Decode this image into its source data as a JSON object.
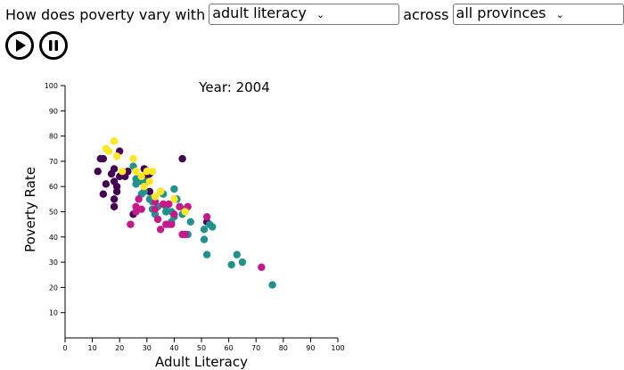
{
  "header": {
    "question_prefix": "How does poverty vary with",
    "measure_selected": "adult literacy",
    "question_middle": "across",
    "region_selected": "all provinces",
    "question_suffix": "?"
  },
  "controls": {
    "play_icon": "play-icon",
    "pause_icon": "pause-icon"
  },
  "colors": {
    "purple": "#440154",
    "teal": "#21918c",
    "magenta": "#c51b8a",
    "yellow": "#fde725"
  },
  "chart_data": {
    "type": "scatter",
    "title": "Year: 2004",
    "xlabel": "Adult Literacy",
    "ylabel": "Poverty Rate",
    "xlim": [
      0,
      100
    ],
    "ylim": [
      0,
      100
    ],
    "xticks": [
      0,
      10,
      20,
      30,
      40,
      50,
      60,
      70,
      80,
      90,
      100
    ],
    "yticks": [
      10,
      20,
      30,
      40,
      50,
      60,
      70,
      80,
      90,
      100
    ],
    "grid": false,
    "series": [
      {
        "color": "#440154",
        "points": [
          [
            12,
            66
          ],
          [
            13,
            71
          ],
          [
            14,
            71
          ],
          [
            14,
            57
          ],
          [
            15,
            61
          ],
          [
            17,
            65
          ],
          [
            18,
            67
          ],
          [
            18,
            62
          ],
          [
            18,
            55
          ],
          [
            18,
            52
          ],
          [
            19,
            60
          ],
          [
            19,
            58
          ],
          [
            20,
            64
          ],
          [
            20,
            74
          ],
          [
            22,
            64
          ],
          [
            23,
            66
          ],
          [
            25,
            49
          ],
          [
            27,
            63
          ],
          [
            29,
            67
          ],
          [
            30,
            64
          ],
          [
            31,
            65
          ],
          [
            31,
            58
          ],
          [
            43,
            71
          ],
          [
            52,
            46
          ]
        ]
      },
      {
        "color": "#21918c",
        "points": [
          [
            25,
            68
          ],
          [
            26,
            63
          ],
          [
            26,
            61
          ],
          [
            28,
            62
          ],
          [
            28,
            57
          ],
          [
            29,
            58
          ],
          [
            30,
            62
          ],
          [
            31,
            55
          ],
          [
            32,
            54
          ],
          [
            32,
            51
          ],
          [
            33,
            49
          ],
          [
            34,
            52
          ],
          [
            35,
            58
          ],
          [
            36,
            57
          ],
          [
            37,
            52
          ],
          [
            37,
            50
          ],
          [
            38,
            45
          ],
          [
            39,
            50
          ],
          [
            39,
            46
          ],
          [
            40,
            59
          ],
          [
            40,
            48
          ],
          [
            41,
            55
          ],
          [
            42,
            52
          ],
          [
            43,
            49
          ],
          [
            44,
            51
          ],
          [
            45,
            41
          ],
          [
            46,
            46
          ],
          [
            51,
            43
          ],
          [
            51,
            39
          ],
          [
            52,
            33
          ],
          [
            53,
            45
          ],
          [
            54,
            44
          ],
          [
            61,
            29
          ],
          [
            63,
            33
          ],
          [
            65,
            30
          ],
          [
            76,
            21
          ]
        ]
      },
      {
        "color": "#c51b8a",
        "points": [
          [
            24,
            45
          ],
          [
            26,
            50
          ],
          [
            26,
            52
          ],
          [
            27,
            55
          ],
          [
            28,
            51
          ],
          [
            33,
            51
          ],
          [
            33,
            54
          ],
          [
            34,
            47
          ],
          [
            35,
            43
          ],
          [
            36,
            53
          ],
          [
            37,
            45
          ],
          [
            38,
            53
          ],
          [
            39,
            45
          ],
          [
            40,
            49
          ],
          [
            42,
            52
          ],
          [
            43,
            41
          ],
          [
            44,
            41
          ],
          [
            45,
            52
          ],
          [
            52,
            48
          ],
          [
            72,
            28
          ]
        ]
      },
      {
        "color": "#fde725",
        "points": [
          [
            15,
            75
          ],
          [
            16,
            74
          ],
          [
            18,
            78
          ],
          [
            19,
            72
          ],
          [
            21,
            66
          ],
          [
            25,
            71
          ],
          [
            26,
            66
          ],
          [
            28,
            64
          ],
          [
            29,
            60
          ],
          [
            30,
            66
          ],
          [
            31,
            62
          ],
          [
            32,
            66
          ],
          [
            33,
            56
          ],
          [
            35,
            58
          ],
          [
            40,
            55
          ],
          [
            44,
            50
          ]
        ]
      }
    ]
  }
}
